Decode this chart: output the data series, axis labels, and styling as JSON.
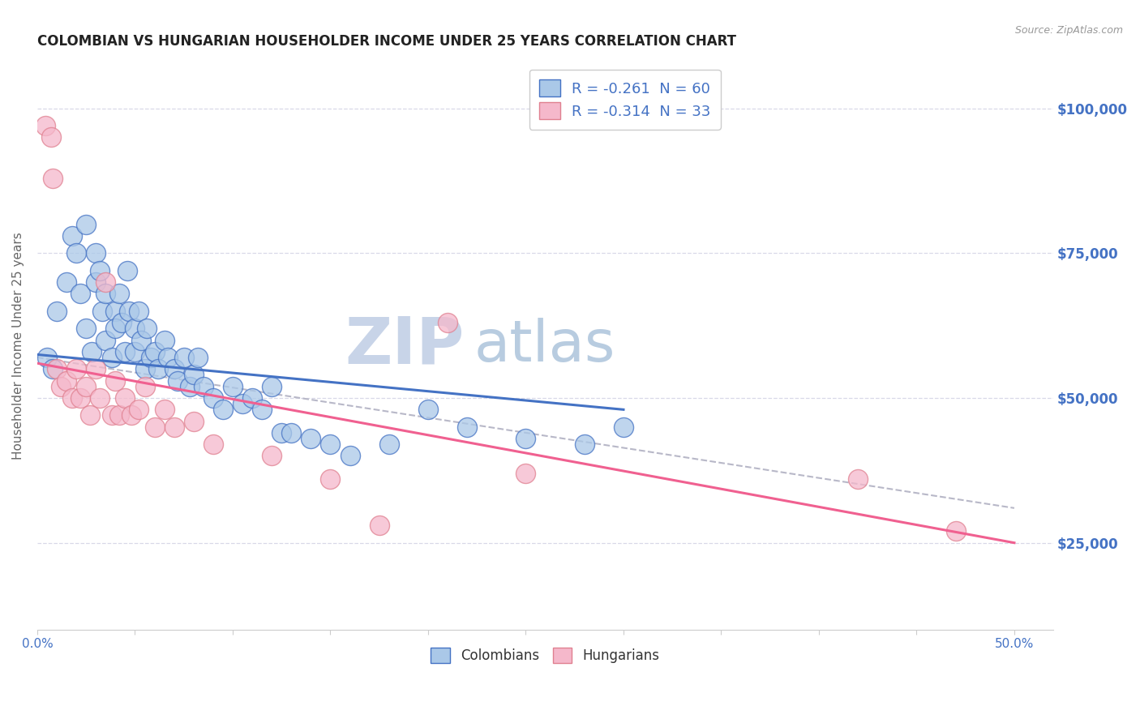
{
  "title": "COLOMBIAN VS HUNGARIAN HOUSEHOLDER INCOME UNDER 25 YEARS CORRELATION CHART",
  "source": "Source: ZipAtlas.com",
  "ylabel": "Householder Income Under 25 years",
  "legend_label1": "R = -0.261  N = 60",
  "legend_label2": "R = -0.314  N = 33",
  "legend_label_colombians": "Colombians",
  "legend_label_hungarians": "Hungarians",
  "xlim": [
    0.0,
    0.52
  ],
  "ylim": [
    10000,
    108000
  ],
  "yticks": [
    25000,
    50000,
    75000,
    100000
  ],
  "ytick_labels": [
    "$25,000",
    "$50,000",
    "$75,000",
    "$100,000"
  ],
  "color_colombian": "#aac8e8",
  "color_hungarian": "#f5b8cb",
  "color_blue_line": "#4472c4",
  "color_pink_line": "#f06090",
  "color_dashed": "#b8b8c8",
  "colombian_x": [
    0.005,
    0.008,
    0.01,
    0.015,
    0.018,
    0.02,
    0.022,
    0.025,
    0.025,
    0.028,
    0.03,
    0.03,
    0.032,
    0.033,
    0.035,
    0.035,
    0.038,
    0.04,
    0.04,
    0.042,
    0.043,
    0.045,
    0.046,
    0.047,
    0.05,
    0.05,
    0.052,
    0.053,
    0.055,
    0.056,
    0.058,
    0.06,
    0.062,
    0.065,
    0.067,
    0.07,
    0.072,
    0.075,
    0.078,
    0.08,
    0.082,
    0.085,
    0.09,
    0.095,
    0.1,
    0.105,
    0.11,
    0.115,
    0.12,
    0.125,
    0.13,
    0.14,
    0.15,
    0.16,
    0.18,
    0.2,
    0.22,
    0.25,
    0.28,
    0.3
  ],
  "colombian_y": [
    57000,
    55000,
    65000,
    70000,
    78000,
    75000,
    68000,
    80000,
    62000,
    58000,
    75000,
    70000,
    72000,
    65000,
    68000,
    60000,
    57000,
    65000,
    62000,
    68000,
    63000,
    58000,
    72000,
    65000,
    62000,
    58000,
    65000,
    60000,
    55000,
    62000,
    57000,
    58000,
    55000,
    60000,
    57000,
    55000,
    53000,
    57000,
    52000,
    54000,
    57000,
    52000,
    50000,
    48000,
    52000,
    49000,
    50000,
    48000,
    52000,
    44000,
    44000,
    43000,
    42000,
    40000,
    42000,
    48000,
    45000,
    43000,
    42000,
    45000
  ],
  "hungarian_x": [
    0.004,
    0.007,
    0.008,
    0.01,
    0.012,
    0.015,
    0.018,
    0.02,
    0.022,
    0.025,
    0.027,
    0.03,
    0.032,
    0.035,
    0.038,
    0.04,
    0.042,
    0.045,
    0.048,
    0.052,
    0.055,
    0.06,
    0.065,
    0.07,
    0.08,
    0.09,
    0.12,
    0.15,
    0.175,
    0.21,
    0.25,
    0.42,
    0.47
  ],
  "hungarian_y": [
    97000,
    95000,
    88000,
    55000,
    52000,
    53000,
    50000,
    55000,
    50000,
    52000,
    47000,
    55000,
    50000,
    70000,
    47000,
    53000,
    47000,
    50000,
    47000,
    48000,
    52000,
    45000,
    48000,
    45000,
    46000,
    42000,
    40000,
    36000,
    28000,
    63000,
    37000,
    36000,
    27000
  ],
  "blue_line_x": [
    0.0,
    0.3
  ],
  "blue_line_y": [
    57500,
    48000
  ],
  "pink_line_x": [
    0.0,
    0.5
  ],
  "pink_line_y": [
    56000,
    25000
  ],
  "dashed_line_x": [
    0.0,
    0.5
  ],
  "dashed_line_y": [
    57000,
    31000
  ],
  "background_color": "#ffffff",
  "grid_color": "#d8d8e8",
  "title_color": "#222222",
  "source_color": "#999999",
  "ylabel_color": "#666666",
  "tick_color_right": "#4472c4",
  "watermark_zip_color": "#c8d4e8",
  "watermark_atlas_color": "#b8cce0"
}
